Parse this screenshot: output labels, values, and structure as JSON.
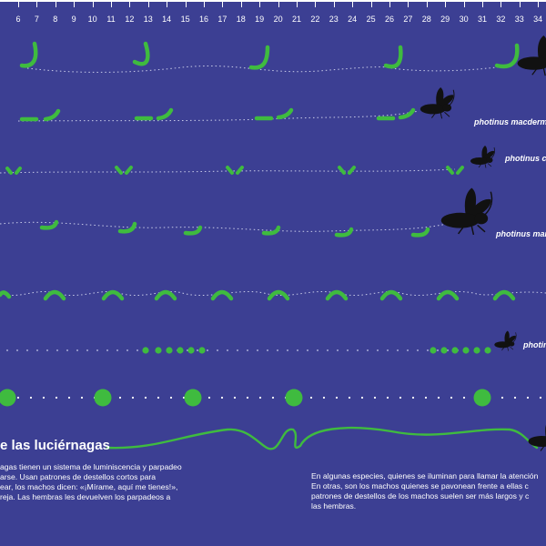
{
  "ruler": {
    "ticks": [
      "6",
      "7",
      "8",
      "9",
      "10",
      "11",
      "12",
      "13",
      "14",
      "15",
      "16",
      "17",
      "18",
      "19",
      "20",
      "21",
      "22",
      "23",
      "24",
      "25",
      "26",
      "27",
      "28",
      "29",
      "30",
      "31",
      "32",
      "33",
      "34"
    ]
  },
  "species_labels": [
    "photinus macdermotti",
    "photinus c",
    "photinus mar",
    "photin"
  ],
  "title": "e las luciérnagas",
  "paragraph_left": [
    "agas tienen un sistema de luminiscencia y parpadeo",
    "arse. Usan patrones de destellos cortos para",
    "ear, los machos dicen: «¡Mírame, aquí me tienes!»,",
    "reja. Las hembras les devuelven los parpadeos a"
  ],
  "paragraph_right": [
    "En algunas especies, quienes se iluminan para llamar la atención",
    "En otras, son los machos quienes se pavonean frente a ellas c",
    "patrones de destellos de los machos suelen ser más largos y c",
    "las hembras."
  ],
  "colors": {
    "background": "#3c3f93",
    "flash": "#3fbb3f",
    "trail": "#c8cbe8",
    "insect": "#111111"
  }
}
